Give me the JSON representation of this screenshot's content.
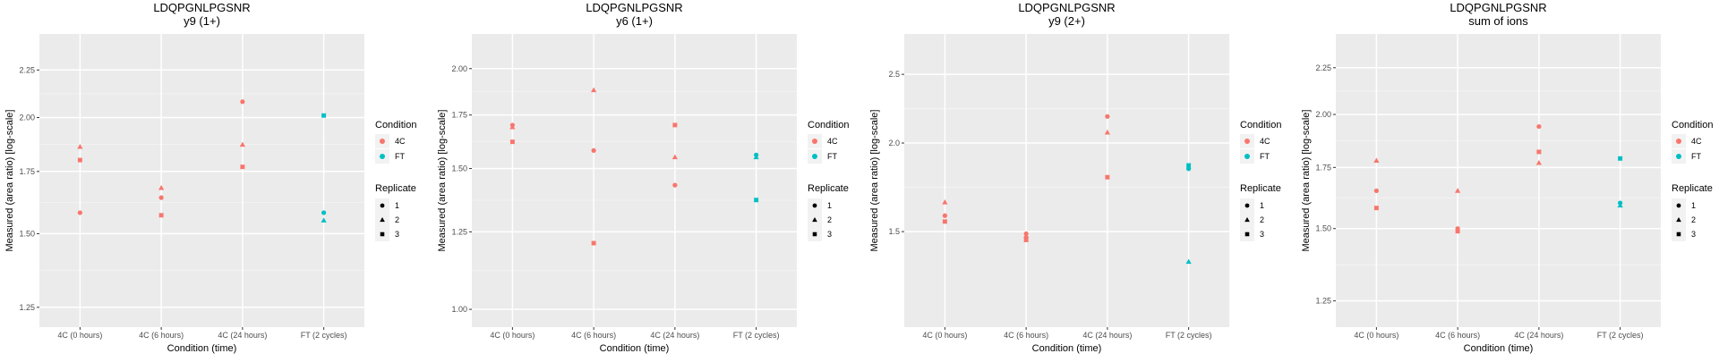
{
  "legend": {
    "condition_title": "Condition",
    "replicate_title": "Replicate",
    "conditions": [
      {
        "label": "4C",
        "color": "#F8766D"
      },
      {
        "label": "FT",
        "color": "#00BFC4"
      }
    ],
    "replicates": [
      {
        "label": "1",
        "shape": "circle"
      },
      {
        "label": "2",
        "shape": "triangle"
      },
      {
        "label": "3",
        "shape": "square"
      }
    ]
  },
  "chart_data": [
    {
      "type": "scatter",
      "title": "LDQPGNLPGSNR",
      "subtitle": "y9 (1+)",
      "xlabel": "Condition (time)",
      "ylabel": "Measured (area ratio) [log-scale]",
      "y_scale": "log",
      "categories": [
        "4C (0 hours)",
        "4C (6 hours)",
        "4C (24 hours)",
        "FT (2 cycles)"
      ],
      "ylim": [
        1.19,
        2.46
      ],
      "yticks": [
        1.25,
        1.5,
        1.75,
        2.0,
        2.25
      ],
      "ytick_labels": [
        "1.25",
        "1.50",
        "1.75",
        "2.00",
        "2.25"
      ],
      "points": [
        {
          "x": "4C (0 hours)",
          "y": 1.58,
          "condition": "4C",
          "replicate": "1"
        },
        {
          "x": "4C (0 hours)",
          "y": 1.86,
          "condition": "4C",
          "replicate": "2"
        },
        {
          "x": "4C (0 hours)",
          "y": 1.8,
          "condition": "4C",
          "replicate": "3"
        },
        {
          "x": "4C (6 hours)",
          "y": 1.64,
          "condition": "4C",
          "replicate": "1"
        },
        {
          "x": "4C (6 hours)",
          "y": 1.68,
          "condition": "4C",
          "replicate": "2"
        },
        {
          "x": "4C (6 hours)",
          "y": 1.57,
          "condition": "4C",
          "replicate": "3"
        },
        {
          "x": "4C (24 hours)",
          "y": 2.08,
          "condition": "4C",
          "replicate": "1"
        },
        {
          "x": "4C (24 hours)",
          "y": 1.87,
          "condition": "4C",
          "replicate": "2"
        },
        {
          "x": "4C (24 hours)",
          "y": 1.77,
          "condition": "4C",
          "replicate": "3"
        },
        {
          "x": "FT (2 cycles)",
          "y": 1.58,
          "condition": "FT",
          "replicate": "1"
        },
        {
          "x": "FT (2 cycles)",
          "y": 1.55,
          "condition": "FT",
          "replicate": "2"
        },
        {
          "x": "FT (2 cycles)",
          "y": 2.01,
          "condition": "FT",
          "replicate": "3"
        }
      ]
    },
    {
      "type": "scatter",
      "title": "LDQPGNLPGSNR",
      "subtitle": "y6 (1+)",
      "xlabel": "Condition (time)",
      "ylabel": "Measured (area ratio) [log-scale]",
      "y_scale": "log",
      "categories": [
        "4C (0 hours)",
        "4C (6 hours)",
        "4C (24 hours)",
        "FT (2 cycles)"
      ],
      "ylim": [
        0.95,
        2.21
      ],
      "yticks": [
        1.0,
        1.25,
        1.5,
        1.75,
        2.0
      ],
      "ytick_labels": [
        "1.00",
        "1.25",
        "1.50",
        "1.75",
        "2.00"
      ],
      "points": [
        {
          "x": "4C (0 hours)",
          "y": 1.7,
          "condition": "4C",
          "replicate": "1"
        },
        {
          "x": "4C (0 hours)",
          "y": 1.69,
          "condition": "4C",
          "replicate": "2"
        },
        {
          "x": "4C (0 hours)",
          "y": 1.62,
          "condition": "4C",
          "replicate": "3"
        },
        {
          "x": "4C (6 hours)",
          "y": 1.58,
          "condition": "4C",
          "replicate": "1"
        },
        {
          "x": "4C (6 hours)",
          "y": 1.88,
          "condition": "4C",
          "replicate": "2"
        },
        {
          "x": "4C (6 hours)",
          "y": 1.21,
          "condition": "4C",
          "replicate": "3"
        },
        {
          "x": "4C (24 hours)",
          "y": 1.43,
          "condition": "4C",
          "replicate": "1"
        },
        {
          "x": "4C (24 hours)",
          "y": 1.55,
          "condition": "4C",
          "replicate": "2"
        },
        {
          "x": "4C (24 hours)",
          "y": 1.7,
          "condition": "4C",
          "replicate": "3"
        },
        {
          "x": "FT (2 cycles)",
          "y": 1.56,
          "condition": "FT",
          "replicate": "1"
        },
        {
          "x": "FT (2 cycles)",
          "y": 1.55,
          "condition": "FT",
          "replicate": "2"
        },
        {
          "x": "FT (2 cycles)",
          "y": 1.37,
          "condition": "FT",
          "replicate": "3"
        }
      ]
    },
    {
      "type": "scatter",
      "title": "LDQPGNLPGSNR",
      "subtitle": "y9 (2+)",
      "xlabel": "Condition (time)",
      "ylabel": "Measured (area ratio) [log-scale]",
      "y_scale": "log",
      "categories": [
        "4C (0 hours)",
        "4C (6 hours)",
        "4C (24 hours)",
        "FT (2 cycles)"
      ],
      "ylim": [
        1.1,
        2.85
      ],
      "yticks": [
        1.5,
        2.0,
        2.5
      ],
      "ytick_labels": [
        "1.5",
        "2.0",
        "2.5"
      ],
      "points": [
        {
          "x": "4C (0 hours)",
          "y": 1.58,
          "condition": "4C",
          "replicate": "1"
        },
        {
          "x": "4C (0 hours)",
          "y": 1.65,
          "condition": "4C",
          "replicate": "2"
        },
        {
          "x": "4C (0 hours)",
          "y": 1.55,
          "condition": "4C",
          "replicate": "3"
        },
        {
          "x": "4C (6 hours)",
          "y": 1.49,
          "condition": "4C",
          "replicate": "1"
        },
        {
          "x": "4C (6 hours)",
          "y": 1.48,
          "condition": "4C",
          "replicate": "2"
        },
        {
          "x": "4C (6 hours)",
          "y": 1.46,
          "condition": "4C",
          "replicate": "3"
        },
        {
          "x": "4C (24 hours)",
          "y": 2.18,
          "condition": "4C",
          "replicate": "1"
        },
        {
          "x": "4C (24 hours)",
          "y": 2.07,
          "condition": "4C",
          "replicate": "2"
        },
        {
          "x": "4C (24 hours)",
          "y": 1.79,
          "condition": "4C",
          "replicate": "3"
        },
        {
          "x": "FT (2 cycles)",
          "y": 1.84,
          "condition": "FT",
          "replicate": "1"
        },
        {
          "x": "FT (2 cycles)",
          "y": 1.36,
          "condition": "FT",
          "replicate": "2"
        },
        {
          "x": "FT (2 cycles)",
          "y": 1.86,
          "condition": "FT",
          "replicate": "3"
        }
      ]
    },
    {
      "type": "scatter",
      "title": "LDQPGNLPGSNR",
      "subtitle": "sum of ions",
      "xlabel": "Condition (time)",
      "ylabel": "Measured (area ratio) [log-scale]",
      "y_scale": "log",
      "categories": [
        "4C (0 hours)",
        "4C (6 hours)",
        "4C (24 hours)",
        "FT (2 cycles)"
      ],
      "ylim": [
        1.17,
        2.45
      ],
      "yticks": [
        1.25,
        1.5,
        1.75,
        2.0,
        2.25
      ],
      "ytick_labels": [
        "1.25",
        "1.50",
        "1.75",
        "2.00",
        "2.25"
      ],
      "points": [
        {
          "x": "4C (0 hours)",
          "y": 1.65,
          "condition": "4C",
          "replicate": "1"
        },
        {
          "x": "4C (0 hours)",
          "y": 1.78,
          "condition": "4C",
          "replicate": "2"
        },
        {
          "x": "4C (0 hours)",
          "y": 1.58,
          "condition": "4C",
          "replicate": "3"
        },
        {
          "x": "4C (6 hours)",
          "y": 1.5,
          "condition": "4C",
          "replicate": "1"
        },
        {
          "x": "4C (6 hours)",
          "y": 1.65,
          "condition": "4C",
          "replicate": "2"
        },
        {
          "x": "4C (6 hours)",
          "y": 1.49,
          "condition": "4C",
          "replicate": "3"
        },
        {
          "x": "4C (24 hours)",
          "y": 1.94,
          "condition": "4C",
          "replicate": "1"
        },
        {
          "x": "4C (24 hours)",
          "y": 1.77,
          "condition": "4C",
          "replicate": "2"
        },
        {
          "x": "4C (24 hours)",
          "y": 1.82,
          "condition": "4C",
          "replicate": "3"
        },
        {
          "x": "FT (2 cycles)",
          "y": 1.6,
          "condition": "FT",
          "replicate": "1"
        },
        {
          "x": "FT (2 cycles)",
          "y": 1.59,
          "condition": "FT",
          "replicate": "2"
        },
        {
          "x": "FT (2 cycles)",
          "y": 1.79,
          "condition": "FT",
          "replicate": "3"
        }
      ]
    }
  ]
}
